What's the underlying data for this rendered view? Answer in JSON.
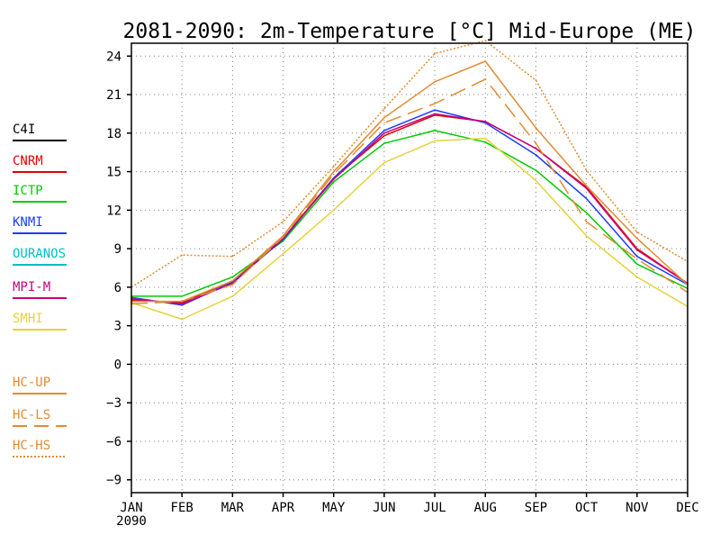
{
  "chart_data": {
    "type": "line",
    "title": "2081-2090: 2m-Temperature [°C] Mid-Europe (ME)",
    "xlabel": "",
    "ylabel": "",
    "x_categories": [
      "JAN",
      "FEB",
      "MAR",
      "APR",
      "MAY",
      "JUN",
      "JUL",
      "AUG",
      "SEP",
      "OCT",
      "NOV",
      "DEC"
    ],
    "x_sublabel": "2090",
    "ylim": [
      -10,
      25
    ],
    "yticks": [
      -9,
      -6,
      -3,
      0,
      3,
      6,
      9,
      12,
      15,
      18,
      21,
      24
    ],
    "grid": true,
    "legend_position": "left",
    "series": [
      {
        "name": "C4I",
        "color": "#000000",
        "dash": "solid",
        "values": [
          null,
          null,
          null,
          null,
          null,
          null,
          null,
          null,
          null,
          null,
          null,
          null
        ]
      },
      {
        "name": "CNRM",
        "color": "#e00000",
        "dash": "solid",
        "values": [
          5.0,
          4.8,
          6.5,
          9.8,
          14.5,
          17.8,
          19.4,
          18.9,
          16.8,
          13.8,
          9.0,
          6.3
        ]
      },
      {
        "name": "ICTP",
        "color": "#00cc00",
        "dash": "solid",
        "values": [
          5.3,
          5.3,
          6.8,
          9.6,
          14.2,
          17.2,
          18.2,
          17.3,
          15.1,
          11.8,
          7.8,
          5.9
        ]
      },
      {
        "name": "KNMI",
        "color": "#1e3cff",
        "dash": "solid",
        "values": [
          5.2,
          4.6,
          6.4,
          9.7,
          14.5,
          18.2,
          19.8,
          18.8,
          16.3,
          12.9,
          8.4,
          6.2
        ]
      },
      {
        "name": "OURANOS",
        "color": "#00c0c0",
        "dash": "solid",
        "values": [
          null,
          null,
          null,
          null,
          null,
          null,
          null,
          null,
          null,
          null,
          null,
          null
        ]
      },
      {
        "name": "MPI-M",
        "color": "#c8007a",
        "dash": "solid",
        "values": [
          5.1,
          4.7,
          6.3,
          9.8,
          14.4,
          18.0,
          19.5,
          18.9,
          16.8,
          13.7,
          8.9,
          6.3
        ]
      },
      {
        "name": "SMHI",
        "color": "#e6d23c",
        "dash": "solid",
        "values": [
          4.8,
          3.5,
          5.3,
          8.6,
          12.0,
          15.7,
          17.4,
          17.6,
          14.3,
          10.0,
          6.8,
          4.5
        ]
      },
      {
        "name": "HC-UP",
        "color": "#e08c32",
        "dash": "solid",
        "values": [
          4.9,
          4.9,
          6.5,
          10.0,
          15.0,
          19.2,
          22.0,
          23.6,
          18.4,
          13.9,
          9.8,
          6.2
        ]
      },
      {
        "name": "HC-LS",
        "color": "#e08c32",
        "dash": "dashed",
        "values": [
          4.7,
          4.9,
          6.2,
          9.9,
          14.8,
          18.8,
          20.3,
          22.2,
          17.2,
          11.1,
          8.2,
          5.6
        ]
      },
      {
        "name": "HC-HS",
        "color": "#e08c32",
        "dash": "dotted",
        "values": [
          6.0,
          8.5,
          8.4,
          11.1,
          15.4,
          19.9,
          24.2,
          25.2,
          22.1,
          15.1,
          10.3,
          8.0
        ]
      }
    ]
  }
}
